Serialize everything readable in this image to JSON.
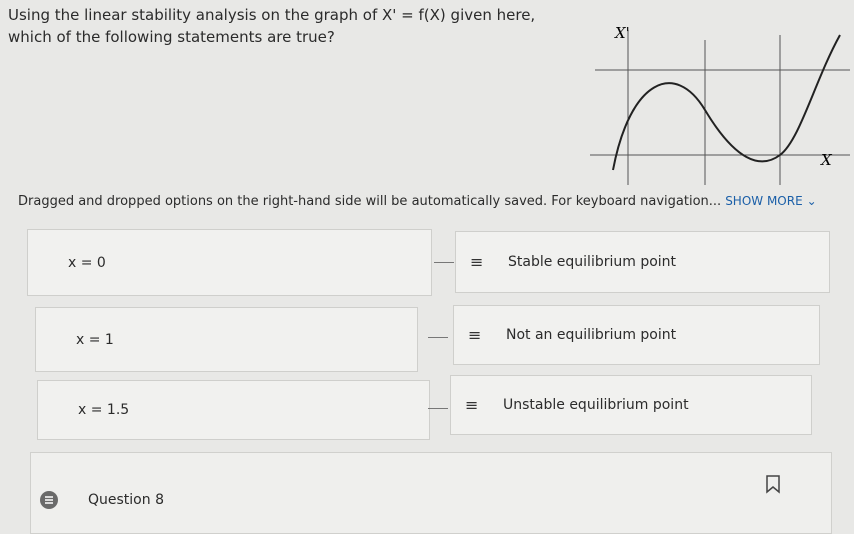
{
  "question": {
    "lines": [
      "Using the linear stability analysis on the graph of X' = f(X) given here,",
      "which of the following statements are true?"
    ]
  },
  "graph": {
    "y_label": "X'",
    "x_label": "X"
  },
  "notice": {
    "text": "Dragged and dropped options on the right-hand side will be automatically saved. For keyboard navigation...",
    "link": "SHOW MORE"
  },
  "matches": [
    {
      "left": "x = 0",
      "right": "Stable equilibrium point"
    },
    {
      "left": "x = 1",
      "right": "Not an equilibrium point"
    },
    {
      "left": "x = 1.5",
      "right": "Unstable equilibrium point"
    }
  ],
  "footer": {
    "label": "Question 8"
  }
}
